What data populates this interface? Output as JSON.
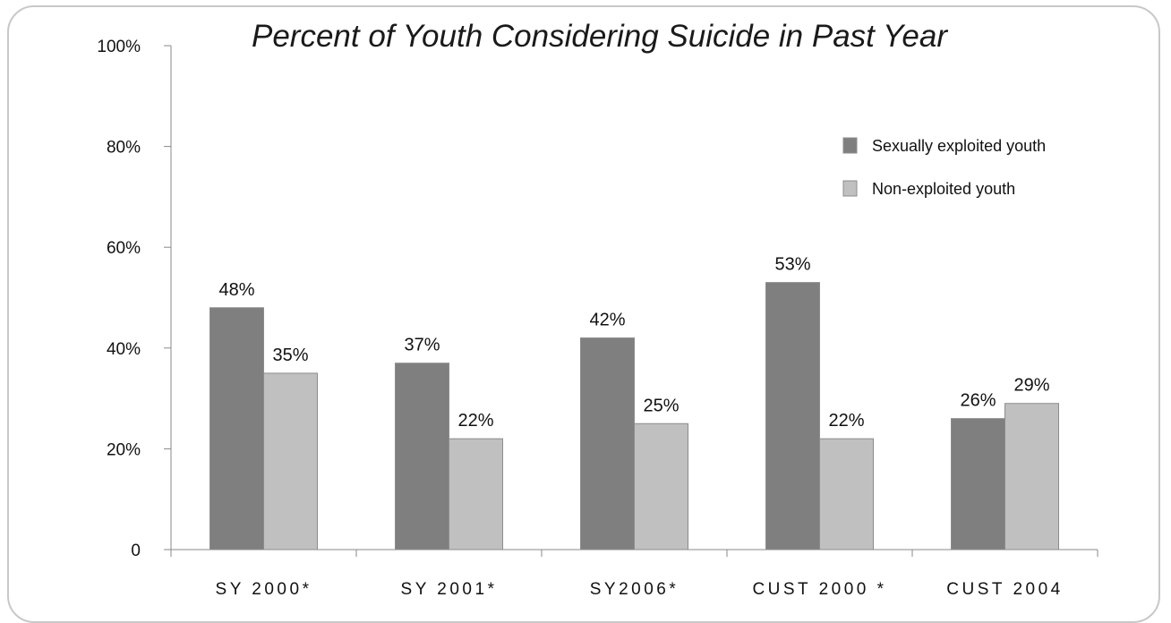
{
  "chart_data": {
    "type": "bar",
    "title": "Percent of Youth Considering Suicide in Past Year",
    "xlabel": "",
    "ylabel": "",
    "categories": [
      "SY 2000*",
      "SY 2001*",
      "SY2006*",
      "CUST 2000 *",
      "CUST 2004"
    ],
    "series": [
      {
        "name": "Sexually exploited youth",
        "values": [
          48,
          37,
          42,
          53,
          26
        ],
        "labels": [
          "48%",
          "37%",
          "42%",
          "53%",
          "26%"
        ],
        "color": "#7f7f7f"
      },
      {
        "name": "Non-exploited youth",
        "values": [
          35,
          22,
          25,
          22,
          29
        ],
        "labels": [
          "35%",
          "22%",
          "25%",
          "22%",
          "29%"
        ],
        "color": "#c0c0c0"
      }
    ],
    "ylim": [
      0,
      100
    ],
    "yticks": [
      0,
      20,
      40,
      60,
      80,
      100
    ],
    "ytick_labels": [
      "0",
      "20%",
      "40%",
      "60%",
      "80%",
      "100%"
    ],
    "grid": false,
    "legend_position": "top-right"
  }
}
